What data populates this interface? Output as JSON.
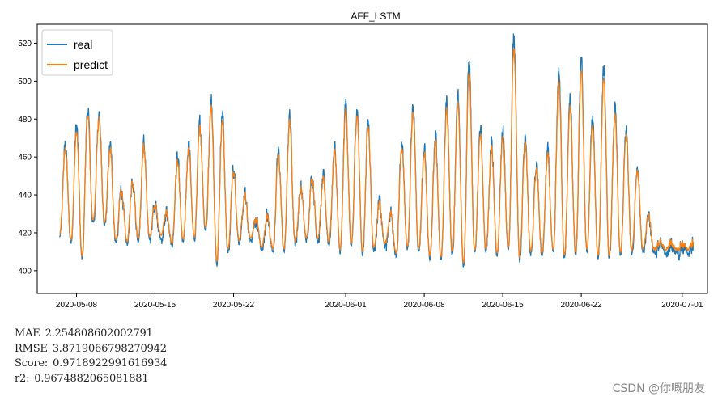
{
  "chart_data": {
    "type": "line",
    "title": "AFF_LSTM",
    "xlabel": "",
    "ylabel": "",
    "x_range": [
      "2020-05-06",
      "2020-07-02"
    ],
    "xlim": [
      "2020-05-04T12:00",
      "2020-07-03T06:00"
    ],
    "ylim": [
      388,
      530
    ],
    "xticks": [
      "2020-05-08",
      "2020-05-15",
      "2020-05-22",
      "2020-06-01",
      "2020-06-08",
      "2020-06-15",
      "2020-06-22",
      "2020-07-01"
    ],
    "yticks": [
      400,
      420,
      440,
      460,
      480,
      500,
      520
    ],
    "grid": false,
    "legend": "top-left",
    "daily_peaks": [
      466,
      476,
      486,
      483,
      465,
      443,
      449,
      467,
      434,
      430,
      458,
      466,
      477,
      490,
      483,
      454,
      439,
      427,
      428,
      462,
      482,
      444,
      450,
      448,
      465,
      488,
      486,
      479,
      435,
      430,
      467,
      488,
      463,
      470,
      489,
      492,
      510,
      475,
      467,
      473,
      524,
      470,
      455,
      462,
      505,
      490,
      510,
      480,
      506,
      485,
      474,
      455,
      429,
      413
    ],
    "daily_troughs": [
      412,
      409,
      400,
      420,
      418,
      409,
      408,
      410,
      411,
      412,
      407,
      409,
      410,
      416,
      398,
      404,
      409,
      410,
      405,
      405,
      404,
      408,
      410,
      410,
      408,
      404,
      407,
      403,
      405,
      407,
      402,
      406,
      405,
      401,
      400,
      403,
      397,
      403,
      404,
      402,
      405,
      400,
      403,
      402,
      403,
      401,
      402,
      404,
      401,
      400,
      402,
      404,
      404,
      404
    ],
    "series": [
      {
        "name": "real",
        "color": "#1f77b4"
      },
      {
        "name": "predict",
        "color": "#ff7f0e"
      }
    ]
  },
  "metrics": [
    {
      "label": "MAE",
      "value": "2.254808602002791"
    },
    {
      "label": "RMSE",
      "value": "3.8719066798270942"
    },
    {
      "label": "Score:",
      "value": "0.9718922991616934"
    },
    {
      "label": "r2:",
      "value": "0.9674882065081881"
    }
  ],
  "watermark": "CSDN @你嘅朋友"
}
